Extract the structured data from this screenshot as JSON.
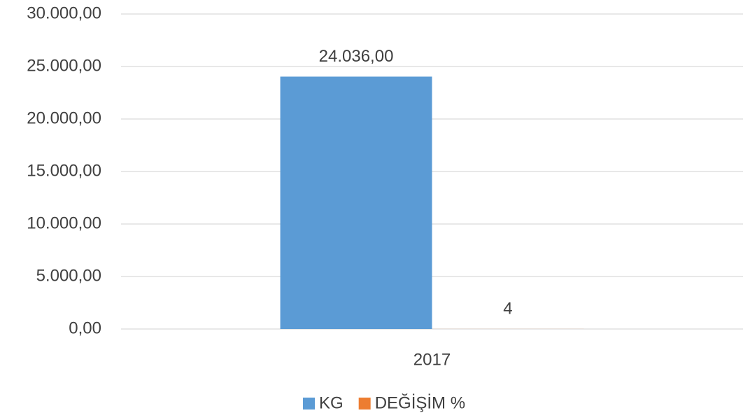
{
  "chart_data": {
    "type": "bar",
    "categories": [
      "2017"
    ],
    "series": [
      {
        "name": "KG",
        "color": "#5b9bd5",
        "values": [
          24036
        ],
        "value_labels": [
          "24.036,00"
        ]
      },
      {
        "name": "DEĞİŞİM %",
        "color": "#ed7d31",
        "values": [
          4
        ]
      }
    ],
    "ylim": [
      0,
      30000
    ],
    "yticks": [
      {
        "value": 0,
        "label": "0,00"
      },
      {
        "value": 5000,
        "label": "5.000,00"
      },
      {
        "value": 10000,
        "label": "10.000,00"
      },
      {
        "value": 15000,
        "label": "15.000,00"
      },
      {
        "value": 20000,
        "label": "20.000,00"
      },
      {
        "value": 25000,
        "label": "25.000,00"
      },
      {
        "value": 30000,
        "label": "30.000,00"
      }
    ],
    "grid": true,
    "legend": "bottom"
  }
}
